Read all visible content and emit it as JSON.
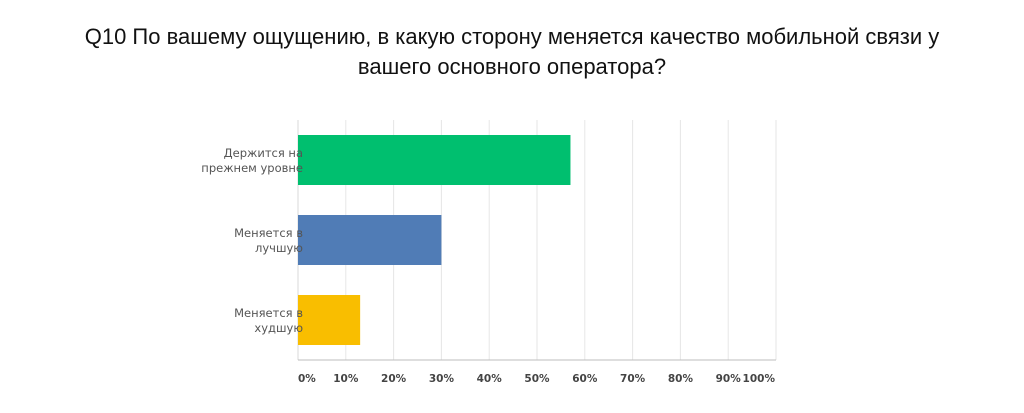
{
  "title_lines": [
    "Q10 По вашему ощущению, в какую сторону меняется качество мобильной связи у",
    "вашего основного оператора?"
  ],
  "chart_data": {
    "type": "bar",
    "orientation": "horizontal",
    "title": "Q10 По вашему ощущению, в какую сторону меняется качество мобильной связи у вашего основного оператора?",
    "categories": [
      [
        "Держится на",
        "прежнем уровне"
      ],
      [
        "Меняется в",
        "лучшую"
      ],
      [
        "Меняется в",
        "худшую"
      ]
    ],
    "values": [
      0.57,
      0.3,
      0.13
    ],
    "colors": [
      "#00bf6f",
      "#507cb6",
      "#f9be00"
    ],
    "xlim": [
      0,
      1
    ],
    "ticks": [
      "0%",
      "10%",
      "20%",
      "30%",
      "40%",
      "50%",
      "60%",
      "70%",
      "80%",
      "90%",
      "100%"
    ],
    "grid": true,
    "legend": "none"
  }
}
